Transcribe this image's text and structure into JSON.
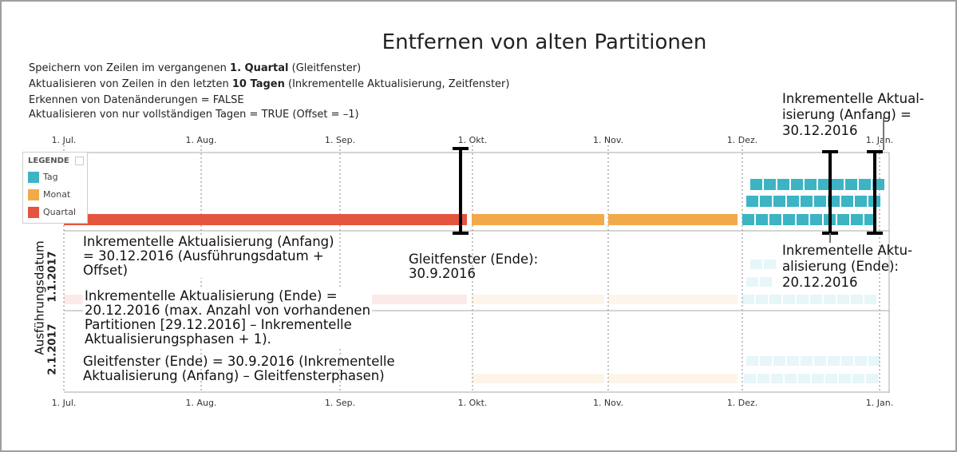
{
  "title": "Entfernen von alten Partitionen",
  "description": [
    {
      "pre": "Speichern von Zeilen im vergangenen ",
      "bold": "1. Quartal",
      "post": " (Gleitfenster)"
    },
    {
      "pre": "Aktualisieren von Zeilen in den letzten ",
      "bold": "10 Tagen",
      "post": " (Inkrementelle Aktualisierung, Zeitfenster)"
    },
    {
      "pre": "Erkennen von Datenänderungen = FALSE",
      "bold": "",
      "post": ""
    },
    {
      "pre": "Aktualisieren von nur vollständigen Tagen = TRUE (Offset = –1)",
      "bold": "",
      "post": ""
    }
  ],
  "timeline": {
    "months": [
      "1. Jul.",
      "1. Aug.",
      "1. Sep.",
      "1. Okt.",
      "1. Nov.",
      "1. Dez.",
      "1. Jan."
    ]
  },
  "legend": {
    "title": "LEGENDE",
    "items": [
      {
        "label": "Tag",
        "color": "#3cb4c4"
      },
      {
        "label": "Monat",
        "color": "#f2a94a"
      },
      {
        "label": "Quartal",
        "color": "#e4553f"
      }
    ]
  },
  "y_axis": {
    "label": "Ausführungsdatum",
    "rows": [
      "1.1.2017",
      "2.1.2017"
    ]
  },
  "annotations": {
    "incr_start_top": [
      "Inkrementelle Aktual-",
      "isierung (Anfang) =",
      "30.12.2016"
    ],
    "incr_end_right": [
      "Inkrementelle Aktu-",
      "alisierung (Ende):",
      "20.12.2016"
    ],
    "incr_start_left": [
      "Inkrementelle Aktualisierung (Anfang)",
      "= 30.12.2016 (Ausführungsdatum +",
      "Offset)"
    ],
    "slide_end": [
      "Gleitfenster (Ende):",
      "30.9.2016"
    ],
    "incr_end_left": [
      "Inkrementelle Aktualisierung (Ende) =",
      "20.12.2016 (max. Anzahl von vorhandenen",
      "Partitionen [29.12.2016] – Inkrementelle",
      "Aktualisierungsphasen + 1)."
    ],
    "slide_end_formula": [
      "Gleitfenster (Ende) = 30.9.2016 (Inkrementelle",
      "Aktualisierung (Anfang) – Gleitfensterphasen)"
    ]
  },
  "colors": {
    "day": "#3cb4c4",
    "month": "#f2a94a",
    "quarter": "#e4553f",
    "grid": "#8a8a8a",
    "marker": "#000000"
  }
}
